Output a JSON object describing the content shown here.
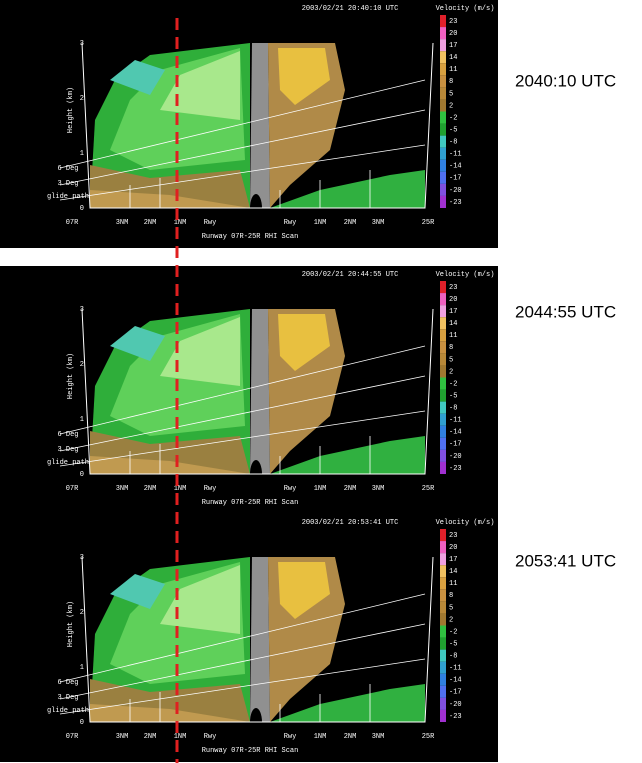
{
  "common": {
    "velocity_title": "Velocity (m/s)",
    "colorbar_labels": [
      "23",
      "20",
      "17",
      "14",
      "11",
      "8",
      "5",
      "2",
      "-2",
      "-5",
      "-8",
      "-11",
      "-14",
      "-17",
      "-20",
      "-23"
    ],
    "y_axis_label": "Height (km)",
    "y_ticks": [
      "0",
      "1",
      "2",
      "3"
    ],
    "glide_labels": [
      "6 Deg",
      "3 Deg",
      "glide path"
    ],
    "x_labels": [
      "07R",
      "3NM",
      "2NM",
      "1NM",
      "Rwy",
      "Rwy",
      "1NM",
      "2NM",
      "3NM",
      "25R"
    ],
    "scan_label": "Runway 07R-25R RHI Scan"
  },
  "panels": [
    {
      "timestamp": "2003/02/21 20:40:10 UTC",
      "time_label": "2040:10 UTC"
    },
    {
      "timestamp": "2003/02/21 20:44:55 UTC",
      "time_label": "2044:55 UTC"
    },
    {
      "timestamp": "2003/02/21 20:53:41 UTC",
      "time_label": "2053:41 UTC"
    }
  ]
}
